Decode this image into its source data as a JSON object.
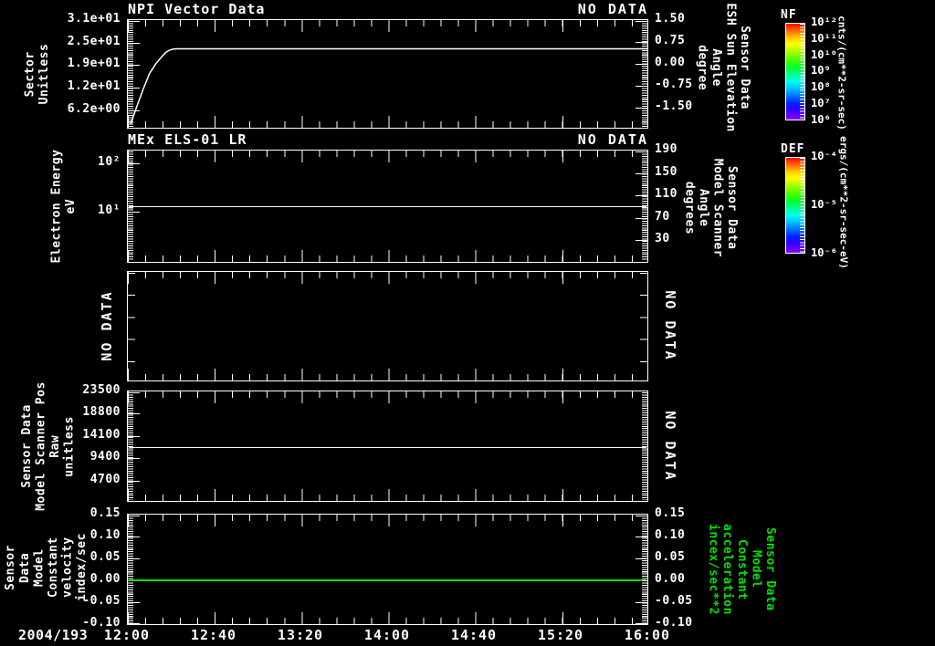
{
  "colors": {
    "background": "#000000",
    "foreground": "#ffffff",
    "green": "#00e400"
  },
  "x_axis": {
    "date_label": "2004/193",
    "tick_labels": [
      "12:00",
      "12:40",
      "13:20",
      "14:00",
      "14:40",
      "15:20",
      "16:00"
    ]
  },
  "colorbars": {
    "nf": {
      "title": "NF",
      "unit": "cnts/(cm**2-sr-sec)",
      "ticks": [
        "10¹²",
        "10¹¹",
        "10¹⁰",
        "10⁹",
        "10⁸",
        "10⁷",
        "10⁶"
      ]
    },
    "def": {
      "title": "DEF",
      "unit": "ergs/(cm**2-sr-sec-eV)",
      "ticks": [
        "10⁻⁴",
        "10⁻⁵",
        "10⁻⁶"
      ]
    }
  },
  "chart_data": {
    "type": "line",
    "x_range_minutes": [
      0,
      240
    ],
    "x_tick_labels": [
      "12:00",
      "12:40",
      "13:20",
      "14:00",
      "14:40",
      "15:20",
      "16:00"
    ],
    "panels": [
      {
        "id": "npi-vector",
        "type": "line",
        "title": "NPI Vector Data",
        "status": "NO DATA",
        "y_left": {
          "label": "Sector\nUnitless",
          "scale": "lin",
          "max": 31,
          "min": 0.8,
          "ticks": [
            {
              "t": "3.1e+01",
              "v": 31
            },
            {
              "t": "2.5e+01",
              "v": 24.8
            },
            {
              "t": "1.9e+01",
              "v": 18.6
            },
            {
              "t": "1.2e+01",
              "v": 12.4
            },
            {
              "t": "6.2e+00",
              "v": 6.2
            }
          ]
        },
        "y_right": {
          "label": "Sensor Data\nESH Sun Elevation\nAngle\ndegree",
          "scale": "lin",
          "max": 1.5,
          "min": -2.25,
          "ticks": [
            {
              "t": "1.50",
              "v": 1.5
            },
            {
              "t": "0.75",
              "v": 0.75
            },
            {
              "t": "0.00",
              "v": 0
            },
            {
              "t": "-0.75",
              "v": -0.75
            },
            {
              "t": "-1.50",
              "v": -1.5
            }
          ]
        },
        "series": [
          {
            "name": "sector-curve",
            "color": "#ffffff",
            "x": [
              1.3,
              4,
              7,
              10,
              13,
              15.5,
              17.5,
              19,
              20.5,
              22,
              240
            ],
            "y": [
              1.8,
              6.5,
              11.5,
              16,
              18.8,
              20.6,
              21.9,
              22.5,
              22.8,
              22.95,
              22.95
            ]
          }
        ]
      },
      {
        "id": "mex-els-01-lr",
        "type": "line",
        "title": "MEx ELS-01 LR",
        "status": "NO DATA",
        "y_left": {
          "label": "Electron Energy\neV",
          "scale": "log",
          "max": 186,
          "min": 0.84,
          "ticks": [
            {
              "t": "10²",
              "v": 100
            },
            {
              "t": "10¹",
              "v": 10
            }
          ]
        },
        "y_right": {
          "label": "Sensor Data\nModel Scanner\nAngle\ndegrees",
          "scale": "lin",
          "max": 190,
          "min": -12,
          "ticks": [
            {
              "t": "190",
              "v": 190
            },
            {
              "t": "150",
              "v": 150
            },
            {
              "t": "110",
              "v": 110
            },
            {
              "t": "70",
              "v": 70
            },
            {
              "t": "30",
              "v": 30
            }
          ]
        },
        "hlines": [
          {
            "axis": "left",
            "value": 12.5,
            "color": "#ffffff",
            "px": 1
          }
        ]
      },
      {
        "id": "empty-panel",
        "type": "empty",
        "left_text": "NO DATA",
        "right_text": "NO DATA"
      },
      {
        "id": "scanner-pos-raw",
        "type": "line",
        "y_left": {
          "label": "Sensor Data\nModel Scanner Pos\nRaw\nunitless",
          "scale": "lin",
          "max": 23500,
          "min": 0,
          "ticks": [
            {
              "t": "23500",
              "v": 23500
            },
            {
              "t": "18800",
              "v": 18800
            },
            {
              "t": "14100",
              "v": 14100
            },
            {
              "t": "9400",
              "v": 9400
            },
            {
              "t": "4700",
              "v": 4700
            }
          ]
        },
        "right_text": "NO DATA",
        "hlines": [
          {
            "axis": "left",
            "value": 11700,
            "color": "#ffffff",
            "px": 1
          }
        ]
      },
      {
        "id": "model-constant",
        "type": "line",
        "y_left": {
          "label": "Sensor Data\nModel Constant\nvelocity\nindex/sec",
          "scale": "lin",
          "max": 0.15,
          "min": -0.105,
          "ticks": [
            {
              "t": "0.15",
              "v": 0.15
            },
            {
              "t": "0.10",
              "v": 0.1
            },
            {
              "t": "0.05",
              "v": 0.05
            },
            {
              "t": "0.00",
              "v": 0
            },
            {
              "t": "-0.05",
              "v": -0.05
            },
            {
              "t": "-0.10",
              "v": -0.1
            }
          ]
        },
        "y_right": {
          "label": "Sensor Data\nModel Constant\nacceleration\nincex/sec**2",
          "label_color": "#00e400",
          "scale": "lin",
          "max": 0.15,
          "min": -0.105,
          "ticks": [
            {
              "t": "0.15",
              "v": 0.15
            },
            {
              "t": "0.10",
              "v": 0.1
            },
            {
              "t": "0.05",
              "v": 0.05
            },
            {
              "t": "0.00",
              "v": 0
            },
            {
              "t": "-0.05",
              "v": -0.05
            },
            {
              "t": "-0.10",
              "v": -0.1
            }
          ]
        },
        "hlines": [
          {
            "axis": "left",
            "value": 0,
            "color": "#00e400",
            "px": 2
          }
        ]
      }
    ]
  }
}
